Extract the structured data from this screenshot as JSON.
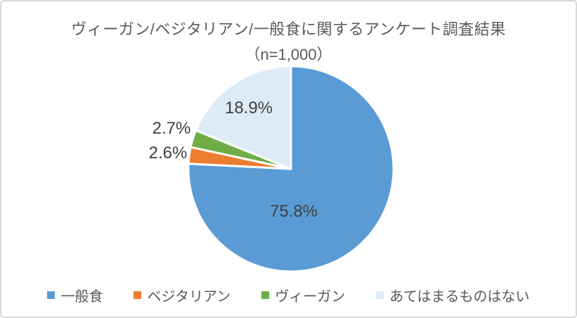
{
  "chart_data": {
    "type": "pie",
    "title": "ヴィーガン/ベジタリアン/一般食に関するアンケート調査結果",
    "subtitle": "（n=1,000）",
    "categories": [
      "一般食",
      "ベジタリアン",
      "ヴィーガン",
      "あてはまるものはない"
    ],
    "values": [
      75.8,
      2.6,
      2.7,
      18.9
    ],
    "labels": [
      "75.8%",
      "2.6%",
      "2.7%",
      "18.9%"
    ],
    "colors": [
      "#5B9BD5",
      "#ED7D31",
      "#70AD47",
      "#DDEBF7"
    ],
    "start_angle_deg": 0,
    "direction": "clockwise",
    "slice_border_color": "#FFFFFF",
    "legend_position": "bottom",
    "title_color": "#595959",
    "label_color": "#404040"
  }
}
